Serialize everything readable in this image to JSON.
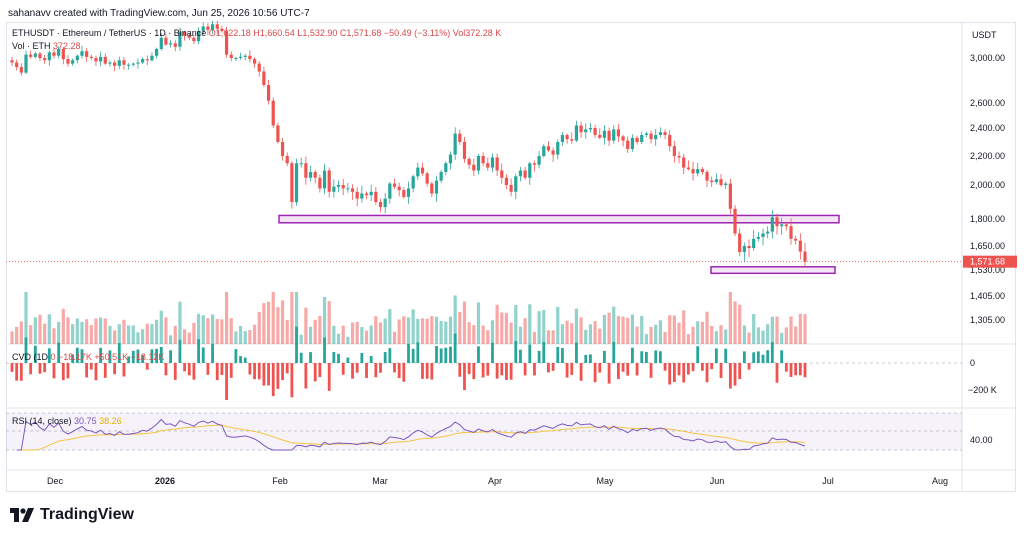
{
  "header": {
    "credit": "sahanavv created with TradingView.com, Jun 25, 2026 10:56 UTC-7"
  },
  "legend": {
    "symbol": "ETHUSDT · Ethereum / TetherUS · 1D · Binance",
    "ohlc": "O1,622.18 H1,660.54 L1,532.90 C1,571.68 −50.49 (−3.11%) Vol372.28 K",
    "vol_label": "Vol · ETH",
    "vol_value": "372.28",
    "cvd_label": "CVD (1D",
    "cvd_values": "0  −18.17K  +50.51K  −18.12K",
    "rsi_label": "RSI (14, close)",
    "rsi_value": "30.75",
    "rsi_ma": "38.26"
  },
  "axis": {
    "currency": "USDT",
    "price_ticks": [
      "3,000.00",
      "2,600.00",
      "2,400.00",
      "2,200.00",
      "2,000.00",
      "1,800.00",
      "1,650.00",
      "1,530.00",
      "1,405.00",
      "1,305.00"
    ],
    "last_price": "1,571.68",
    "cvd_ticks": [
      "0",
      "−200 K"
    ],
    "rsi_tick": "40.00",
    "time_ticks": [
      "Dec",
      "2026",
      "Feb",
      "Mar",
      "Apr",
      "May",
      "Jun",
      "Jul",
      "Aug"
    ]
  },
  "brand": {
    "name": "TradingView"
  },
  "colors": {
    "up": "#26a69a",
    "down": "#ef5350",
    "zone": "#9c27b0",
    "rsi": "#7e57c2",
    "rsi_ma": "#f5c542"
  },
  "chart_data": {
    "type": "candlestick",
    "symbol": "ETHUSDT",
    "timeframe": "1D",
    "approximate": true,
    "x_ticks": [
      "Dec",
      "2026",
      "Feb",
      "Mar",
      "Apr",
      "May",
      "Jun",
      "Jul",
      "Aug"
    ],
    "closes": [
      2960,
      2920,
      2870,
      3030,
      3010,
      3040,
      3000,
      2980,
      3050,
      3020,
      3080,
      2990,
      2950,
      2980,
      3020,
      3060,
      3010,
      3000,
      2970,
      3010,
      2950,
      2960,
      2930,
      2980,
      2940,
      2940,
      2950,
      2960,
      2990,
      2980,
      3020,
      3080,
      3180,
      3120,
      3130,
      3100,
      3230,
      3200,
      3180,
      3150,
      3240,
      3280,
      3250,
      3300,
      3260,
      3240,
      3030,
      3000,
      3000,
      3010,
      3020,
      2990,
      2950,
      2880,
      2760,
      2620,
      2420,
      2300,
      2200,
      2150,
      1900,
      2150,
      2150,
      2050,
      2090,
      2050,
      1980,
      2100,
      1960,
      1990,
      2000,
      1980,
      1980,
      1960,
      1920,
      1950,
      1940,
      1960,
      1900,
      1870,
      1920,
      2010,
      1990,
      1970,
      1930,
      1980,
      2060,
      2120,
      2080,
      2010,
      1950,
      2030,
      2090,
      2150,
      2210,
      2360,
      2300,
      2180,
      2140,
      2100,
      2200,
      2150,
      2120,
      2190,
      2100,
      2050,
      2000,
      1960,
      2060,
      2100,
      2050,
      2150,
      2140,
      2200,
      2270,
      2240,
      2210,
      2300,
      2350,
      2320,
      2310,
      2420,
      2370,
      2390,
      2400,
      2350,
      2330,
      2380,
      2310,
      2390,
      2340,
      2310,
      2250,
      2330,
      2300,
      2350,
      2360,
      2320,
      2350,
      2370,
      2350,
      2270,
      2200,
      2190,
      2120,
      2110,
      2080,
      2110,
      2090,
      2030,
      2020,
      2040,
      2000,
      2010,
      1860,
      1720,
      1620,
      1650,
      1640,
      1690,
      1700,
      1720,
      1730,
      1810,
      1760,
      1770,
      1760,
      1690,
      1680,
      1622,
      1571.68
    ],
    "horizontal_zones": [
      {
        "from": 1779,
        "to": 1821
      },
      {
        "from": 1514,
        "to": 1546
      }
    ],
    "last_price": 1571.68,
    "change": -50.49,
    "change_pct": -3.11,
    "volume": "372.28 K",
    "rsi": 30.75,
    "rsi_ma": 38.26
  }
}
